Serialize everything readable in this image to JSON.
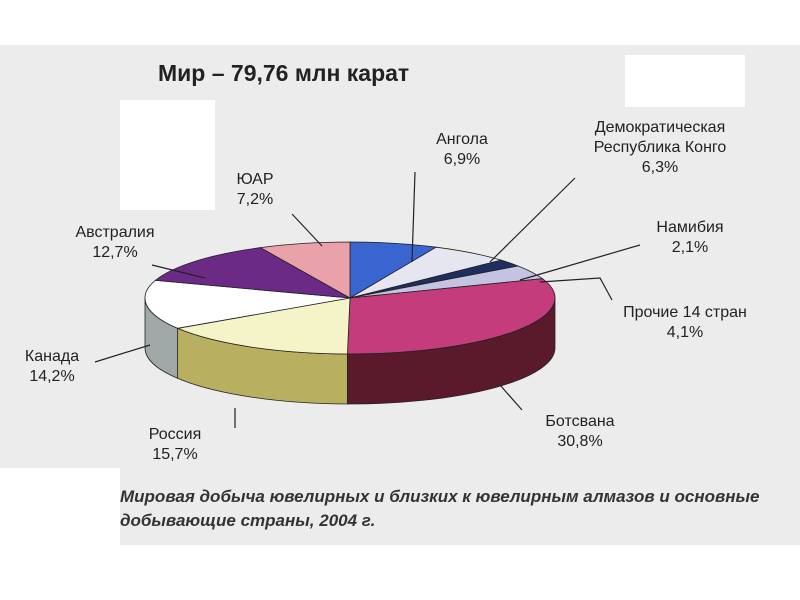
{
  "chart_data": {
    "type": "pie",
    "title": "Мир – 79,76 млн карат",
    "caption": "Мировая добыча ювелирных и близких к ювелирным алмазов и основные добывающие страны, 2004 г.",
    "categories": [
      "Ангола",
      "Демократическая Республика Конго",
      "Намибия",
      "Прочие 14 стран",
      "Ботсвана",
      "Россия",
      "Канада",
      "Австралия",
      "ЮАР"
    ],
    "values": [
      6.9,
      6.3,
      2.1,
      4.1,
      30.8,
      15.7,
      14.2,
      12.7,
      7.2
    ],
    "value_labels": [
      "6,9%",
      "6,3%",
      "2,1%",
      "4,1%",
      "30,8%",
      "15,7%",
      "14,2%",
      "12,7%",
      "7,2%"
    ],
    "colors": [
      "#3a64d0",
      "#e6e6f0",
      "#1e2e60",
      "#c4c4e2",
      "#c43c7c",
      "#f4f4c8",
      "#ffffff",
      "#6a2a86",
      "#eaa2aa"
    ],
    "side_colors": [
      "#20388a",
      "#a0a0b0",
      "#101838",
      "#8080a8",
      "#5a1a2c",
      "#b8b060",
      "#a0a8a8",
      "#3a1450",
      "#c03020"
    ]
  }
}
